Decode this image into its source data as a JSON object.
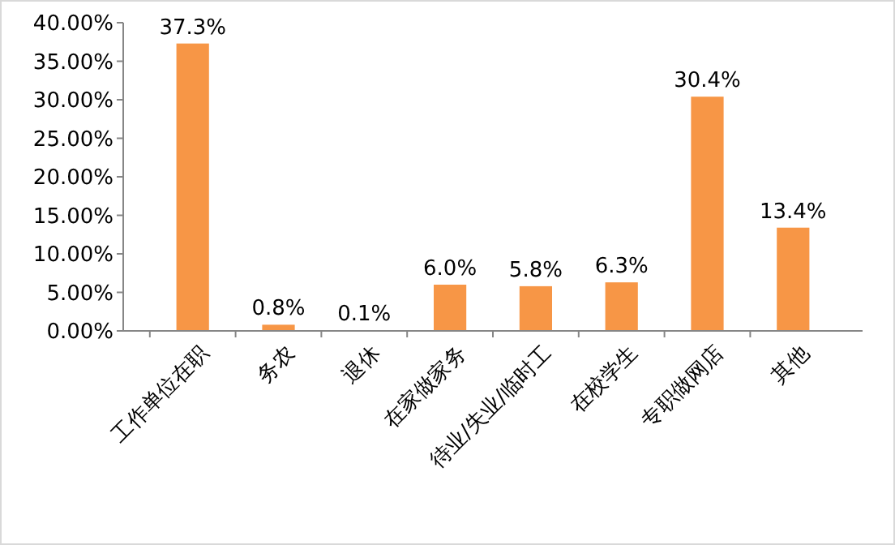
{
  "chart_data": {
    "type": "bar",
    "categories": [
      "工作单位在职",
      "务农",
      "退休",
      "在家做家务",
      "待业/失业/临时工",
      "在校学生",
      "专职做网店",
      "其他"
    ],
    "values": [
      37.3,
      0.8,
      0.1,
      6.0,
      5.8,
      6.3,
      30.4,
      13.4
    ],
    "value_labels": [
      "37.3%",
      "0.8%",
      "0.1%",
      "6.0%",
      "5.8%",
      "6.3%",
      "30.4%",
      "13.4%"
    ],
    "color": "#f79646",
    "ylim": [
      0,
      40
    ],
    "yticks": [
      {
        "value": 0,
        "label": "0.00%"
      },
      {
        "value": 5,
        "label": "5.00%"
      },
      {
        "value": 10,
        "label": "10.00%"
      },
      {
        "value": 15,
        "label": "15.00%"
      },
      {
        "value": 20,
        "label": "20.00%"
      },
      {
        "value": 25,
        "label": "25.00%"
      },
      {
        "value": 30,
        "label": "30.00%"
      },
      {
        "value": 35,
        "label": "35.00%"
      },
      {
        "value": 40,
        "label": "40.00%"
      }
    ],
    "grid": false
  }
}
